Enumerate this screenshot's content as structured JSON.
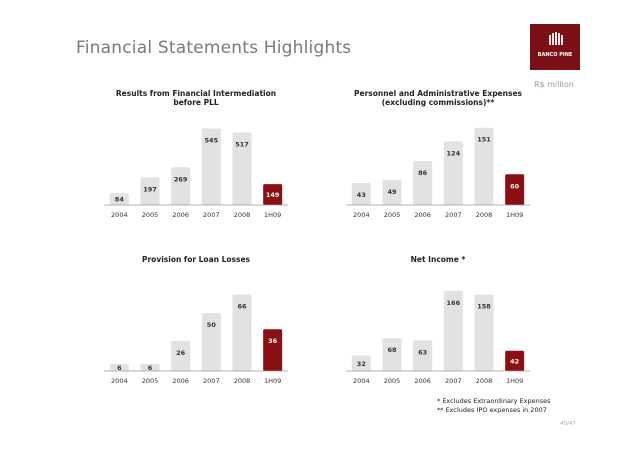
{
  "page": {
    "title": "Financial Statements Highlights",
    "unit_note": "R$ million",
    "footnotes": [
      "* Excludes Extraordinary Expenses",
      "** Excludes IPO expenses in 2007"
    ],
    "page_number": "40/47",
    "logo": {
      "text": "BANCO PINE",
      "background": "#7a1015"
    }
  },
  "colors": {
    "bar": "#e2e2e2",
    "highlight_bar": "#8b1014",
    "axis": "#9a9a9a"
  },
  "chart_data": [
    {
      "type": "bar",
      "title": "Results from Financial Intermediation\nbefore PLL",
      "categories": [
        "2004",
        "2005",
        "2006",
        "2007",
        "2008",
        "1H09"
      ],
      "values": [
        84,
        197,
        269,
        545,
        517,
        149
      ],
      "highlight_last": true,
      "ylim": [
        0,
        620
      ]
    },
    {
      "type": "bar",
      "title": "Personnel and Administrative Expenses\n(excluding commissions)**",
      "categories": [
        "2004",
        "2005",
        "2006",
        "2007",
        "2008",
        "1H09"
      ],
      "values": [
        43,
        49,
        86,
        124,
        151,
        60
      ],
      "highlight_last": true,
      "ylim": [
        0,
        170
      ]
    },
    {
      "type": "bar",
      "title": "Provision for Loan Losses",
      "categories": [
        "2004",
        "2005",
        "2006",
        "2007",
        "2008",
        "1H09"
      ],
      "values": [
        6,
        6,
        26,
        50,
        66,
        36
      ],
      "highlight_last": true,
      "ylim": [
        0,
        75
      ]
    },
    {
      "type": "bar",
      "title": "Net Income *",
      "categories": [
        "2004",
        "2005",
        "2006",
        "2007",
        "2008",
        "1H09"
      ],
      "values": [
        32,
        68,
        63,
        166,
        158,
        42
      ],
      "highlight_last": true,
      "ylim": [
        0,
        180
      ]
    }
  ]
}
